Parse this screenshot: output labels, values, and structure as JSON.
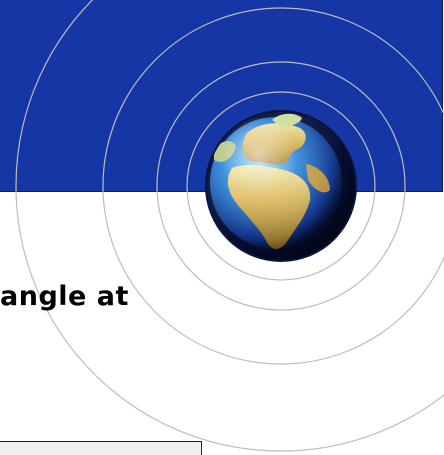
{
  "slide": {
    "title_fragment": "angle at"
  },
  "graphics": {
    "banner_color": "#1537a6",
    "ring_color": "#bdbdbd",
    "globe_icon": "globe-europe-africa-icon"
  }
}
